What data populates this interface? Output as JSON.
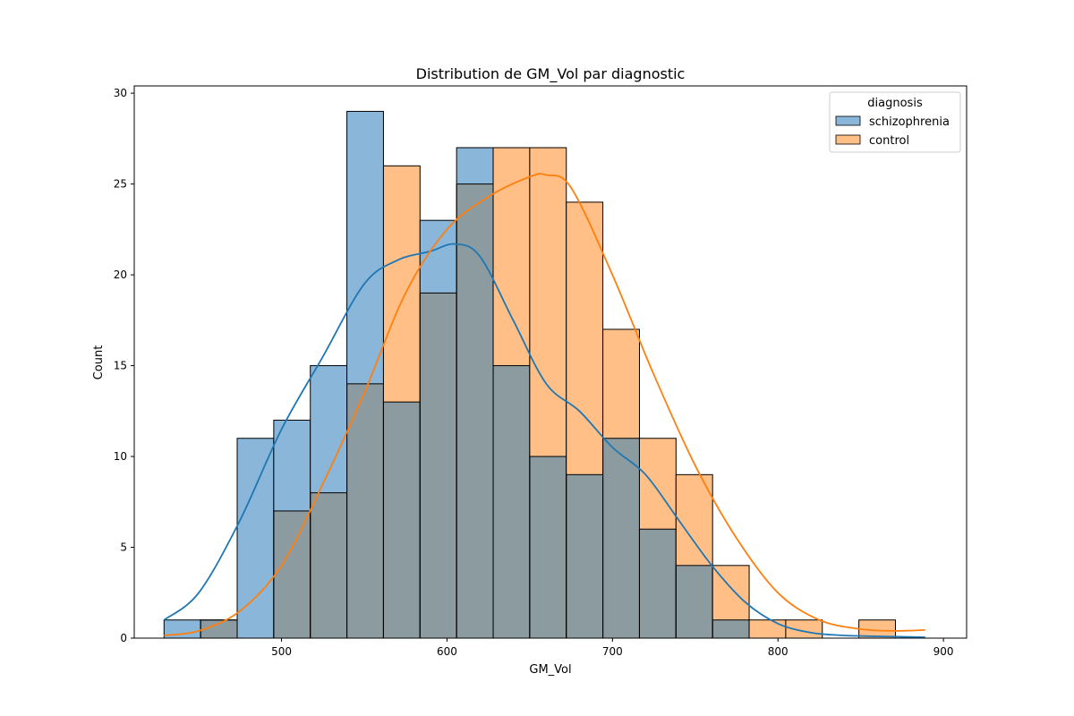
{
  "chart_data": {
    "type": "histogram",
    "title": "Distribution de GM_Vol par diagnostic",
    "xlabel": "GM_Vol",
    "ylabel": "Count",
    "xlim": [
      411,
      914
    ],
    "ylim": [
      0,
      30.4
    ],
    "xticks": [
      500,
      600,
      700,
      800,
      900
    ],
    "yticks": [
      0,
      5,
      10,
      15,
      20,
      25,
      30
    ],
    "bin_edges": [
      429,
      451.1,
      473.2,
      495.3,
      517.4,
      539.5,
      561.6,
      583.7,
      605.8,
      627.9,
      650,
      672.1,
      694.2,
      716.3,
      738.4,
      760.5,
      782.6,
      804.7,
      826.8,
      848.9,
      871,
      889
    ],
    "legend": {
      "title": "diagnosis",
      "location": "top-right"
    },
    "series": [
      {
        "name": "schizophrenia",
        "color": "#1f77b4",
        "bar_color": "#8ab6d9",
        "counts": [
          1,
          1,
          11,
          12,
          15,
          29,
          13,
          23,
          27,
          15,
          10,
          9,
          11,
          6,
          4,
          1,
          0,
          0,
          0,
          0,
          0
        ],
        "kde_x": [
          429,
          450,
          475,
          500,
          525,
          550,
          570,
          590,
          605,
          620,
          640,
          660,
          680,
          700,
          720,
          740,
          760,
          780,
          800,
          820,
          840,
          860,
          889
        ],
        "kde_y": [
          1,
          2.5,
          6.5,
          11.5,
          15.5,
          19.5,
          20.8,
          21.3,
          21.7,
          21,
          17.5,
          14,
          12.5,
          10.5,
          9,
          6.5,
          4,
          2,
          0.8,
          0.3,
          0.15,
          0.1,
          0.05
        ]
      },
      {
        "name": "control",
        "color": "#ff7f0e",
        "bar_color": "#ffbf86",
        "counts": [
          0,
          1,
          0,
          7,
          8,
          14,
          26,
          19,
          25,
          27,
          27,
          24,
          17,
          11,
          9,
          4,
          1,
          1,
          0,
          1,
          0
        ],
        "kde_x": [
          429,
          450,
          475,
          500,
          525,
          550,
          575,
          600,
          625,
          650,
          660,
          675,
          700,
          725,
          750,
          775,
          800,
          825,
          850,
          870,
          889
        ],
        "kde_y": [
          0.15,
          0.4,
          1.5,
          4,
          8.5,
          13.5,
          19,
          22.5,
          24.3,
          25.4,
          25.5,
          24.8,
          20,
          14.5,
          9.5,
          5.5,
          2.5,
          1,
          0.5,
          0.4,
          0.45
        ]
      }
    ],
    "overlap_color": "#8c9ba0"
  }
}
